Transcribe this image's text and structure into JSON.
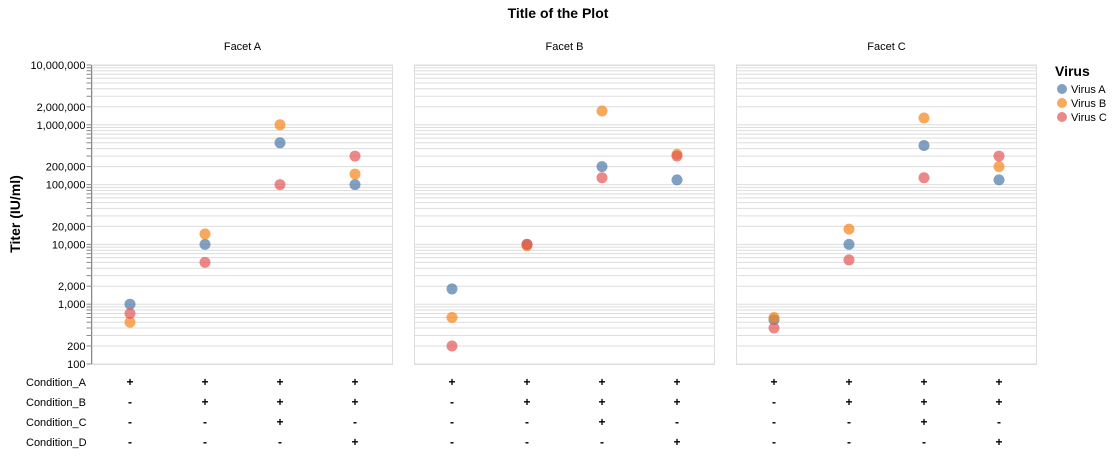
{
  "chart_data": {
    "type": "scatter",
    "title": "Title of the Plot",
    "ylabel": "Titer (IU/ml)",
    "yscale": "log",
    "ylim": [
      100,
      10000000
    ],
    "yticks": [
      100,
      200,
      1000,
      2000,
      10000,
      20000,
      100000,
      200000,
      1000000,
      2000000,
      10000000
    ],
    "ytick_labels": [
      "100",
      "200",
      "1,000",
      "2,000",
      "10,000",
      "20,000",
      "100,000",
      "200,000",
      "1,000,000",
      "2,000,000",
      "10,000,000"
    ],
    "grid": true,
    "legend": {
      "title": "Virus",
      "position": "right",
      "entries": [
        "Virus A",
        "Virus B",
        "Virus C"
      ]
    },
    "colors": {
      "Virus A": "#4c78a8",
      "Virus B": "#f58518",
      "Virus C": "#e45756"
    },
    "conditions": {
      "names": [
        "Condition_A",
        "Condition_B",
        "Condition_C",
        "Condition_D"
      ],
      "columns": [
        [
          "+",
          "-",
          "-",
          "-"
        ],
        [
          "+",
          "+",
          "-",
          "-"
        ],
        [
          "+",
          "+",
          "+",
          "-"
        ],
        [
          "+",
          "+",
          "-",
          "+"
        ]
      ]
    },
    "facets": [
      {
        "name": "Facet A",
        "series": [
          {
            "name": "Virus A",
            "values": [
              1000,
              10000,
              500000,
              100000
            ]
          },
          {
            "name": "Virus B",
            "values": [
              500,
              15000,
              1000000,
              150000
            ]
          },
          {
            "name": "Virus C",
            "values": [
              700,
              5000,
              100000,
              300000
            ]
          }
        ]
      },
      {
        "name": "Facet B",
        "series": [
          {
            "name": "Virus A",
            "values": [
              1800,
              10000,
              200000,
              120000
            ]
          },
          {
            "name": "Virus B",
            "values": [
              600,
              9500,
              1700000,
              320000
            ]
          },
          {
            "name": "Virus C",
            "values": [
              200,
              10000,
              130000,
              300000
            ]
          }
        ]
      },
      {
        "name": "Facet C",
        "series": [
          {
            "name": "Virus A",
            "values": [
              550,
              10000,
              450000,
              120000
            ]
          },
          {
            "name": "Virus B",
            "values": [
              600,
              18000,
              1300000,
              200000
            ]
          },
          {
            "name": "Virus C",
            "values": [
              400,
              5500,
              130000,
              300000
            ]
          }
        ]
      }
    ]
  }
}
